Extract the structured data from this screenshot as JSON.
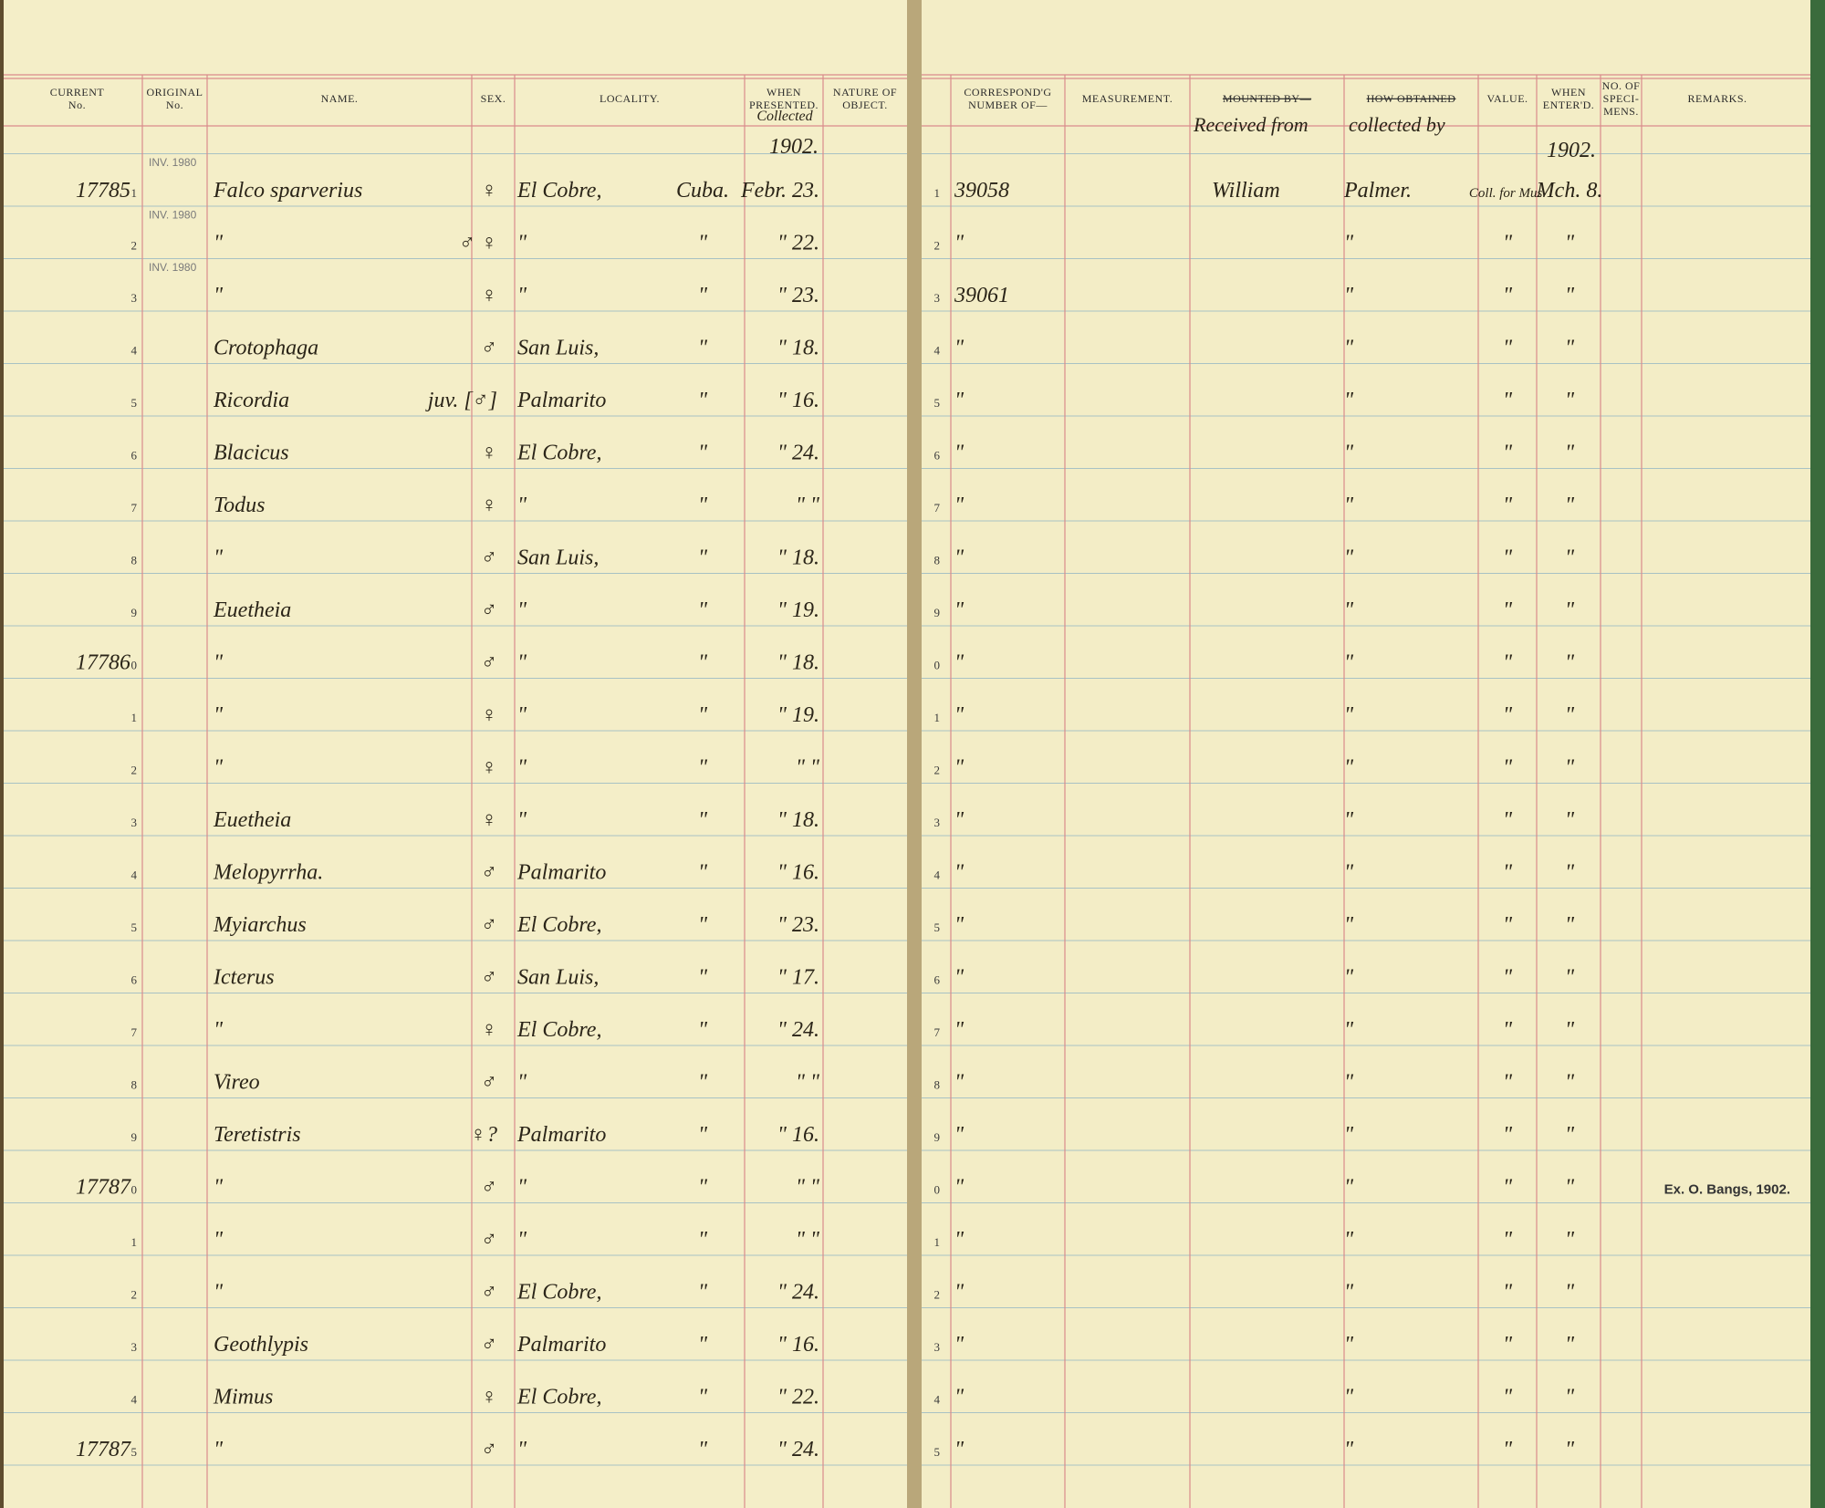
{
  "header": {
    "left": [
      [
        "CURRENT",
        "No."
      ],
      [
        "ORIGINAL",
        "No."
      ],
      [
        "NAME."
      ],
      [
        "SEX."
      ],
      [
        "LOCALITY."
      ],
      [
        "WHEN",
        "PRESENTED."
      ],
      [
        "NATURE OF",
        "OBJECT."
      ]
    ],
    "right": [
      [
        "CORRESPOND'G",
        "NUMBER OF—"
      ],
      [
        "MEASUREMENT."
      ],
      [
        "MOUNTED BY—"
      ],
      [
        "HOW OBTAINED"
      ],
      [
        "VALUE."
      ],
      [
        "WHEN",
        "ENTER'D."
      ],
      [
        "NO. OF",
        "SPECI-",
        "MENS."
      ],
      [
        "REMARKS."
      ]
    ]
  },
  "annotations": {
    "collected": "Collected",
    "year_left": "1902.",
    "received_from": "Received from",
    "collected_by": "collected by",
    "year_right": "1902."
  },
  "left_rows": [
    [
      "17785",
      "1",
      "INV. 1980",
      "Falco sparverius",
      "♀",
      "El Cobre,",
      "Cuba.",
      "Febr. 23."
    ],
    [
      null,
      "2",
      "INV. 1980",
      "\"",
      "♂ ♀",
      "\"",
      "\"",
      "\" 22."
    ],
    [
      null,
      "3",
      "INV. 1980",
      "\"",
      "♀",
      "\"",
      "\"",
      "\" 23."
    ],
    [
      null,
      "4",
      null,
      "Crotophaga",
      "♂",
      "San Luis,",
      "\"",
      "\" 18."
    ],
    [
      null,
      "5",
      null,
      "Ricordia",
      "juv. [♂]",
      "Palmarito",
      "\"",
      "\" 16."
    ],
    [
      null,
      "6",
      null,
      "Blacicus",
      "♀",
      "El Cobre,",
      "\"",
      "\" 24."
    ],
    [
      null,
      "7",
      null,
      "Todus",
      "♀",
      "\"",
      "\"",
      "\" \""
    ],
    [
      null,
      "8",
      null,
      "\"",
      "♂",
      "San Luis,",
      "\"",
      "\" 18."
    ],
    [
      null,
      "9",
      null,
      "Euetheia",
      "♂",
      "\"",
      "\"",
      "\" 19."
    ],
    [
      "17786",
      "0",
      null,
      "\"",
      "♂",
      "\"",
      "\"",
      "\" 18."
    ],
    [
      null,
      "1",
      null,
      "\"",
      "♀",
      "\"",
      "\"",
      "\" 19."
    ],
    [
      null,
      "2",
      null,
      "\"",
      "♀",
      "\"",
      "\"",
      "\" \""
    ],
    [
      null,
      "3",
      null,
      "Euetheia",
      "♀",
      "\"",
      "\"",
      "\" 18."
    ],
    [
      null,
      "4",
      null,
      "Melopyrrha.",
      "♂",
      "Palmarito",
      "\"",
      "\" 16."
    ],
    [
      null,
      "5",
      null,
      "Myiarchus",
      "♂",
      "El Cobre,",
      "\"",
      "\" 23."
    ],
    [
      null,
      "6",
      null,
      "Icterus",
      "♂",
      "San Luis,",
      "\"",
      "\" 17."
    ],
    [
      null,
      "7",
      null,
      "\"",
      "♀",
      "El Cobre,",
      "\"",
      "\" 24."
    ],
    [
      null,
      "8",
      null,
      "Vireo",
      "♂",
      "\"",
      "\"",
      "\" \""
    ],
    [
      null,
      "9",
      null,
      "Teretistris",
      "♀?",
      "Palmarito",
      "\"",
      "\" 16."
    ],
    [
      "17787",
      "0",
      null,
      "\"",
      "♂",
      "\"",
      "\"",
      "\" \""
    ],
    [
      null,
      "1",
      null,
      "\"",
      "♂",
      "\"",
      "\"",
      "\" \""
    ],
    [
      null,
      "2",
      null,
      "\"",
      "♂",
      "El Cobre,",
      "\"",
      "\" 24."
    ],
    [
      null,
      "3",
      null,
      "Geothlypis",
      "♂",
      "Palmarito",
      "\"",
      "\" 16."
    ],
    [
      null,
      "4",
      null,
      "Mimus",
      "♀",
      "El Cobre,",
      "\"",
      "\" 22."
    ],
    [
      "17787",
      "5",
      null,
      "\"",
      "♂",
      "\"",
      "\"",
      "\" 24."
    ]
  ],
  "right_rows": [
    [
      "1",
      "39058",
      "William",
      "Palmer.",
      "Coll. for Mus.",
      "Mch. 8.",
      null
    ],
    [
      "2",
      "\"",
      null,
      "\"",
      "\"",
      "\"",
      null
    ],
    [
      "3",
      "39061",
      null,
      "\"",
      "\"",
      "\"",
      null
    ],
    [
      "4",
      "\"",
      null,
      "\"",
      "\"",
      "\"",
      null
    ],
    [
      "5",
      "\"",
      null,
      "\"",
      "\"",
      "\"",
      null
    ],
    [
      "6",
      "\"",
      null,
      "\"",
      "\"",
      "\"",
      null
    ],
    [
      "7",
      "\"",
      null,
      "\"",
      "\"",
      "\"",
      null
    ],
    [
      "8",
      "\"",
      null,
      "\"",
      "\"",
      "\"",
      null
    ],
    [
      "9",
      "\"",
      null,
      "\"",
      "\"",
      "\"",
      null
    ],
    [
      "0",
      "\"",
      null,
      "\"",
      "\"",
      "\"",
      null
    ],
    [
      "1",
      "\"",
      null,
      "\"",
      "\"",
      "\"",
      null
    ],
    [
      "2",
      "\"",
      null,
      "\"",
      "\"",
      "\"",
      null
    ],
    [
      "3",
      "\"",
      null,
      "\"",
      "\"",
      "\"",
      null
    ],
    [
      "4",
      "\"",
      null,
      "\"",
      "\"",
      "\"",
      null
    ],
    [
      "5",
      "\"",
      null,
      "\"",
      "\"",
      "\"",
      null
    ],
    [
      "6",
      "\"",
      null,
      "\"",
      "\"",
      "\"",
      null
    ],
    [
      "7",
      "\"",
      null,
      "\"",
      "\"",
      "\"",
      null
    ],
    [
      "8",
      "\"",
      null,
      "\"",
      "\"",
      "\"",
      null
    ],
    [
      "9",
      "\"",
      null,
      "\"",
      "\"",
      "\"",
      null
    ],
    [
      "0",
      "\"",
      null,
      "\"",
      "\"",
      "\"",
      "Ex. O. Bangs, 1902."
    ],
    [
      "1",
      "\"",
      null,
      "\"",
      "\"",
      "\"",
      null
    ],
    [
      "2",
      "\"",
      null,
      "\"",
      "\"",
      "\"",
      null
    ],
    [
      "3",
      "\"",
      null,
      "\"",
      "\"",
      "\"",
      null
    ],
    [
      "4",
      "\"",
      null,
      "\"",
      "\"",
      "\"",
      null
    ],
    [
      "5",
      "\"",
      null,
      "\"",
      "\"",
      "\"",
      null
    ]
  ]
}
